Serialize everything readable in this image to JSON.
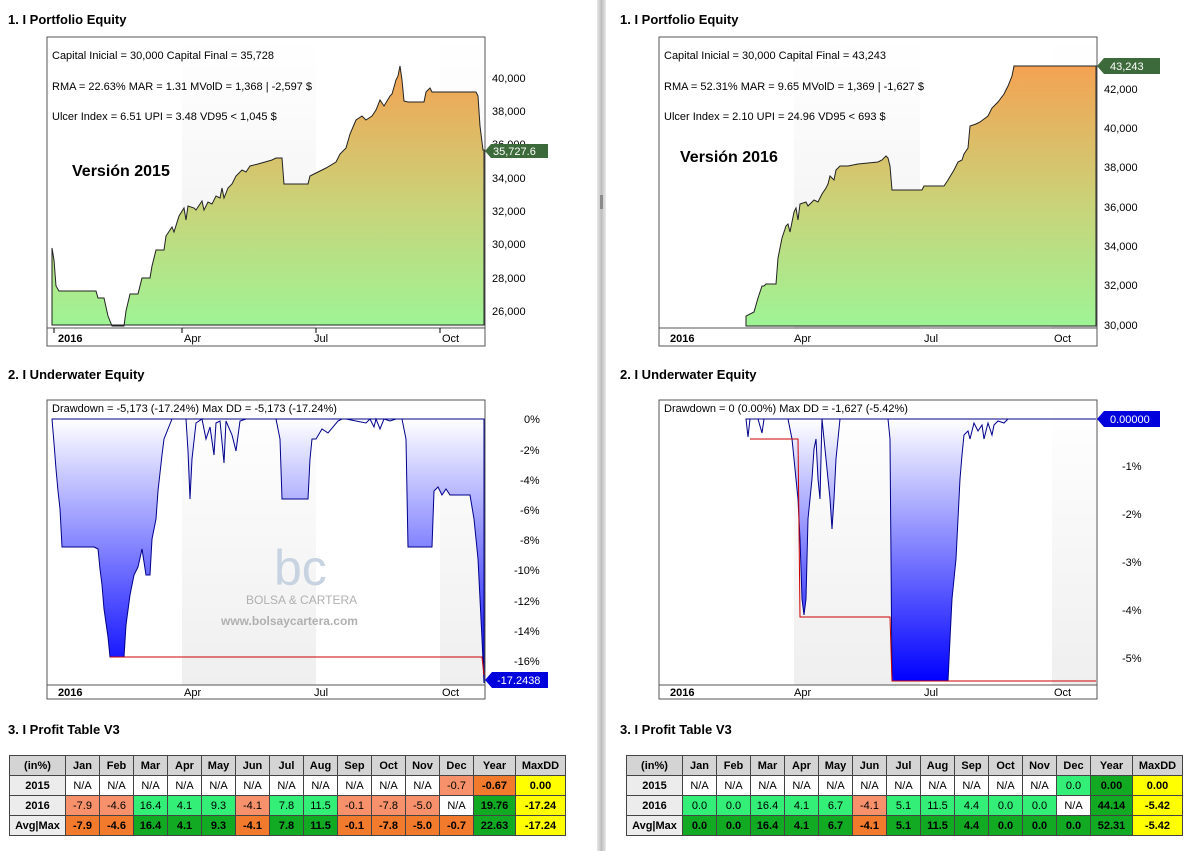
{
  "panels": [
    {
      "equity": {
        "title": "1. I Portfolio Equity",
        "lines": [
          "Capital Inicial = 30,000  Capital Final = 35,728",
          "RMA = 22.63%   MAR = 1.31   MVolD = 1,368 | -2,597 $",
          "Ulcer Index = 6.51   UPI = 3.48   VD95 < 1,045 $"
        ],
        "version": "Versión 2015",
        "yticks": [
          "40,000",
          "38,000",
          "36,000",
          "34,000",
          "32,000",
          "30,000",
          "28,000",
          "26,000"
        ],
        "xticks": [
          "2016",
          "Apr",
          "Jul",
          "Oct"
        ],
        "last_value": "35,727.6"
      },
      "underwater": {
        "title": "2. I Underwater Equity",
        "header": "Drawdown = -5,173 (-17.24%)        Max DD = -5,173 (-17.24%)",
        "yticks": [
          "0%",
          "-2%",
          "-4%",
          "-6%",
          "-8%",
          "-10%",
          "-12%",
          "-14%",
          "-16%"
        ],
        "xticks": [
          "2016",
          "Apr",
          "Jul",
          "Oct"
        ],
        "last_value": "-17.2438",
        "watermark": {
          "logo": "bc",
          "name": "BOLSA & CARTERA",
          "url": "www.bolsaycartera.com"
        }
      },
      "table": {
        "title": "3. I Profit Table V3",
        "headers": [
          "(in%)",
          "Jan",
          "Feb",
          "Mar",
          "Apr",
          "May",
          "Jun",
          "Jul",
          "Aug",
          "Sep",
          "Oct",
          "Nov",
          "Dec",
          "Year",
          "MaxDD"
        ],
        "rows": [
          {
            "label": "2015",
            "cells": [
              {
                "v": "N/A",
                "c": "#ffffff"
              },
              {
                "v": "N/A",
                "c": "#ffffff"
              },
              {
                "v": "N/A",
                "c": "#ffffff"
              },
              {
                "v": "N/A",
                "c": "#ffffff"
              },
              {
                "v": "N/A",
                "c": "#ffffff"
              },
              {
                "v": "N/A",
                "c": "#ffffff"
              },
              {
                "v": "N/A",
                "c": "#ffffff"
              },
              {
                "v": "N/A",
                "c": "#ffffff"
              },
              {
                "v": "N/A",
                "c": "#ffffff"
              },
              {
                "v": "N/A",
                "c": "#ffffff"
              },
              {
                "v": "N/A",
                "c": "#ffffff"
              },
              {
                "v": "-0.7",
                "c": "#f7916b"
              },
              {
                "v": "-0.67",
                "c": "#f27a2c",
                "b": true
              },
              {
                "v": "0.00",
                "c": "#ffff00",
                "b": true
              }
            ]
          },
          {
            "label": "2016",
            "cells": [
              {
                "v": "-7.9",
                "c": "#f7916b"
              },
              {
                "v": "-4.6",
                "c": "#f7916b"
              },
              {
                "v": "16.4",
                "c": "#33ee77"
              },
              {
                "v": "4.1",
                "c": "#33ee77"
              },
              {
                "v": "9.3",
                "c": "#33ee77"
              },
              {
                "v": "-4.1",
                "c": "#f7916b"
              },
              {
                "v": "7.8",
                "c": "#33ee77"
              },
              {
                "v": "11.5",
                "c": "#33ee77"
              },
              {
                "v": "-0.1",
                "c": "#f7916b"
              },
              {
                "v": "-7.8",
                "c": "#f7916b"
              },
              {
                "v": "-5.0",
                "c": "#f7916b"
              },
              {
                "v": "N/A",
                "c": "#ffffff"
              },
              {
                "v": "19.76",
                "c": "#11aa22",
                "b": true
              },
              {
                "v": "-17.24",
                "c": "#ffff00",
                "b": true
              }
            ]
          },
          {
            "label": "Avg|Max",
            "cells": [
              {
                "v": "-7.9",
                "c": "#f27a2c",
                "b": true
              },
              {
                "v": "-4.6",
                "c": "#f27a2c",
                "b": true
              },
              {
                "v": "16.4",
                "c": "#11aa22",
                "b": true
              },
              {
                "v": "4.1",
                "c": "#11aa22",
                "b": true
              },
              {
                "v": "9.3",
                "c": "#11aa22",
                "b": true
              },
              {
                "v": "-4.1",
                "c": "#f27a2c",
                "b": true
              },
              {
                "v": "7.8",
                "c": "#11aa22",
                "b": true
              },
              {
                "v": "11.5",
                "c": "#11aa22",
                "b": true
              },
              {
                "v": "-0.1",
                "c": "#f27a2c",
                "b": true
              },
              {
                "v": "-7.8",
                "c": "#f27a2c",
                "b": true
              },
              {
                "v": "-5.0",
                "c": "#f27a2c",
                "b": true
              },
              {
                "v": "-0.7",
                "c": "#f27a2c",
                "b": true
              },
              {
                "v": "22.63",
                "c": "#11aa22",
                "b": true
              },
              {
                "v": "-17.24",
                "c": "#ffff00",
                "b": true
              }
            ]
          }
        ]
      }
    },
    {
      "equity": {
        "title": "1. I Portfolio Equity",
        "lines": [
          "Capital Inicial = 30,000  Capital Final = 43,243",
          "RMA = 52.31%   MAR = 9.65   MVolD = 1,369 | -1,627 $",
          "Ulcer Index = 2.10   UPI = 24.96   VD95 < 693 $"
        ],
        "version": "Versión 2016",
        "yticks": [
          "42,000",
          "40,000",
          "38,000",
          "36,000",
          "34,000",
          "32,000",
          "30,000"
        ],
        "xticks": [
          "2016",
          "Apr",
          "Jul",
          "Oct"
        ],
        "last_value": "43,243"
      },
      "underwater": {
        "title": "2. I Underwater Equity",
        "header": "Drawdown = 0 (0.00%)        Max DD = -1,627 (-5.42%)",
        "yticks": [
          "-1%",
          "-2%",
          "-3%",
          "-4%",
          "-5%"
        ],
        "xticks": [
          "2016",
          "Apr",
          "Jul",
          "Oct"
        ],
        "last_value": "0.00000"
      },
      "table": {
        "title": "3. I Profit Table V3",
        "headers": [
          "(in%)",
          "Jan",
          "Feb",
          "Mar",
          "Apr",
          "May",
          "Jun",
          "Jul",
          "Aug",
          "Sep",
          "Oct",
          "Nov",
          "Dec",
          "Year",
          "MaxDD"
        ],
        "rows": [
          {
            "label": "2015",
            "cells": [
              {
                "v": "N/A",
                "c": "#ffffff"
              },
              {
                "v": "N/A",
                "c": "#ffffff"
              },
              {
                "v": "N/A",
                "c": "#ffffff"
              },
              {
                "v": "N/A",
                "c": "#ffffff"
              },
              {
                "v": "N/A",
                "c": "#ffffff"
              },
              {
                "v": "N/A",
                "c": "#ffffff"
              },
              {
                "v": "N/A",
                "c": "#ffffff"
              },
              {
                "v": "N/A",
                "c": "#ffffff"
              },
              {
                "v": "N/A",
                "c": "#ffffff"
              },
              {
                "v": "N/A",
                "c": "#ffffff"
              },
              {
                "v": "N/A",
                "c": "#ffffff"
              },
              {
                "v": "0.0",
                "c": "#33ee77"
              },
              {
                "v": "0.00",
                "c": "#11aa22",
                "b": true
              },
              {
                "v": "0.00",
                "c": "#ffff00",
                "b": true
              }
            ]
          },
          {
            "label": "2016",
            "cells": [
              {
                "v": "0.0",
                "c": "#33ee77"
              },
              {
                "v": "0.0",
                "c": "#33ee77"
              },
              {
                "v": "16.4",
                "c": "#33ee77"
              },
              {
                "v": "4.1",
                "c": "#33ee77"
              },
              {
                "v": "6.7",
                "c": "#33ee77"
              },
              {
                "v": "-4.1",
                "c": "#f7916b"
              },
              {
                "v": "5.1",
                "c": "#33ee77"
              },
              {
                "v": "11.5",
                "c": "#33ee77"
              },
              {
                "v": "4.4",
                "c": "#33ee77"
              },
              {
                "v": "0.0",
                "c": "#33ee77"
              },
              {
                "v": "0.0",
                "c": "#33ee77"
              },
              {
                "v": "N/A",
                "c": "#ffffff"
              },
              {
                "v": "44.14",
                "c": "#11aa22",
                "b": true
              },
              {
                "v": "-5.42",
                "c": "#ffff00",
                "b": true
              }
            ]
          },
          {
            "label": "Avg|Max",
            "cells": [
              {
                "v": "0.0",
                "c": "#11aa22",
                "b": true
              },
              {
                "v": "0.0",
                "c": "#11aa22",
                "b": true
              },
              {
                "v": "16.4",
                "c": "#11aa22",
                "b": true
              },
              {
                "v": "4.1",
                "c": "#11aa22",
                "b": true
              },
              {
                "v": "6.7",
                "c": "#11aa22",
                "b": true
              },
              {
                "v": "-4.1",
                "c": "#f27a2c",
                "b": true
              },
              {
                "v": "5.1",
                "c": "#11aa22",
                "b": true
              },
              {
                "v": "11.5",
                "c": "#11aa22",
                "b": true
              },
              {
                "v": "4.4",
                "c": "#11aa22",
                "b": true
              },
              {
                "v": "0.0",
                "c": "#11aa22",
                "b": true
              },
              {
                "v": "0.0",
                "c": "#11aa22",
                "b": true
              },
              {
                "v": "0.0",
                "c": "#11aa22",
                "b": true
              },
              {
                "v": "52.31",
                "c": "#11aa22",
                "b": true
              },
              {
                "v": "-5.42",
                "c": "#ffff00",
                "b": true
              }
            ]
          }
        ]
      }
    }
  ]
}
